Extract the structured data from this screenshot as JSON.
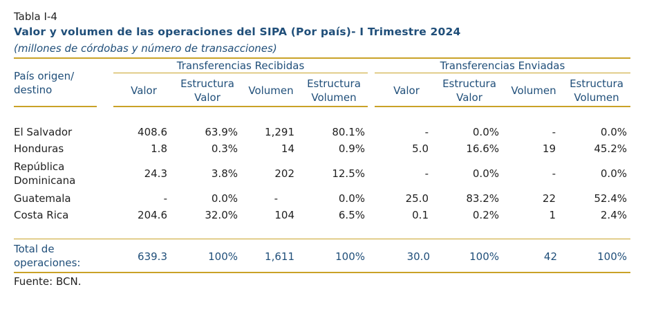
{
  "caption": {
    "label": "Tabla I-4",
    "title": "Valor y volumen de las operaciones del SIPA (Por país)- I Trimestre 2024",
    "subtitle": "(millones de córdobas y número de transacciones)"
  },
  "header": {
    "row_label_line1": "País origen/",
    "row_label_line2": "destino",
    "group_received": "Transferencias Recibidas",
    "group_sent": "Transferencias Enviadas",
    "col_valor": "Valor",
    "col_estructura": "Estructura",
    "col_valor2": "Valor",
    "col_volumen": "Volumen",
    "col_volumen2": "Volumen"
  },
  "rows": [
    {
      "label1": "El Salvador",
      "label2": "",
      "r_valor": "408.6",
      "r_est_valor": "63.9%",
      "r_volumen": "1,291",
      "r_est_volumen": "80.1%",
      "s_valor": "-",
      "s_est_valor": "0.0%",
      "s_volumen": "-",
      "s_est_volumen": "0.0%"
    },
    {
      "label1": "Honduras",
      "label2": "",
      "r_valor": "1.8",
      "r_est_valor": "0.3%",
      "r_volumen": "14",
      "r_est_volumen": "0.9%",
      "s_valor": "5.0",
      "s_est_valor": "16.6%",
      "s_volumen": "19",
      "s_est_volumen": "45.2%"
    },
    {
      "label1": "República",
      "label2": "Dominicana",
      "r_valor": "24.3",
      "r_est_valor": "3.8%",
      "r_volumen": "202",
      "r_est_volumen": "12.5%",
      "s_valor": "-",
      "s_est_valor": "0.0%",
      "s_volumen": "-",
      "s_est_volumen": "0.0%"
    },
    {
      "label1": "Guatemala",
      "label2": "",
      "r_valor": "-",
      "r_est_valor": "0.0%",
      "r_volumen": "-",
      "r_est_volumen": "0.0%",
      "s_valor": "25.0",
      "s_est_valor": "83.2%",
      "s_volumen": "22",
      "s_est_volumen": "52.4%"
    },
    {
      "label1": "Costa Rica",
      "label2": "",
      "r_valor": "204.6",
      "r_est_valor": "32.0%",
      "r_volumen": "104",
      "r_est_volumen": "6.5%",
      "s_valor": "0.1",
      "s_est_valor": "0.2%",
      "s_volumen": "1",
      "s_est_volumen": "2.4%"
    }
  ],
  "total": {
    "label1": "Total de",
    "label2": "operaciones:",
    "r_valor": "639.3",
    "r_est_valor": "100%",
    "r_volumen": "1,611",
    "r_est_volumen": "100%",
    "s_valor": "30.0",
    "s_est_valor": "100%",
    "s_volumen": "42",
    "s_est_volumen": "100%"
  },
  "source": "Fuente: BCN.",
  "colors": {
    "rule": "#c9a227",
    "heading": "#1f4e79"
  }
}
